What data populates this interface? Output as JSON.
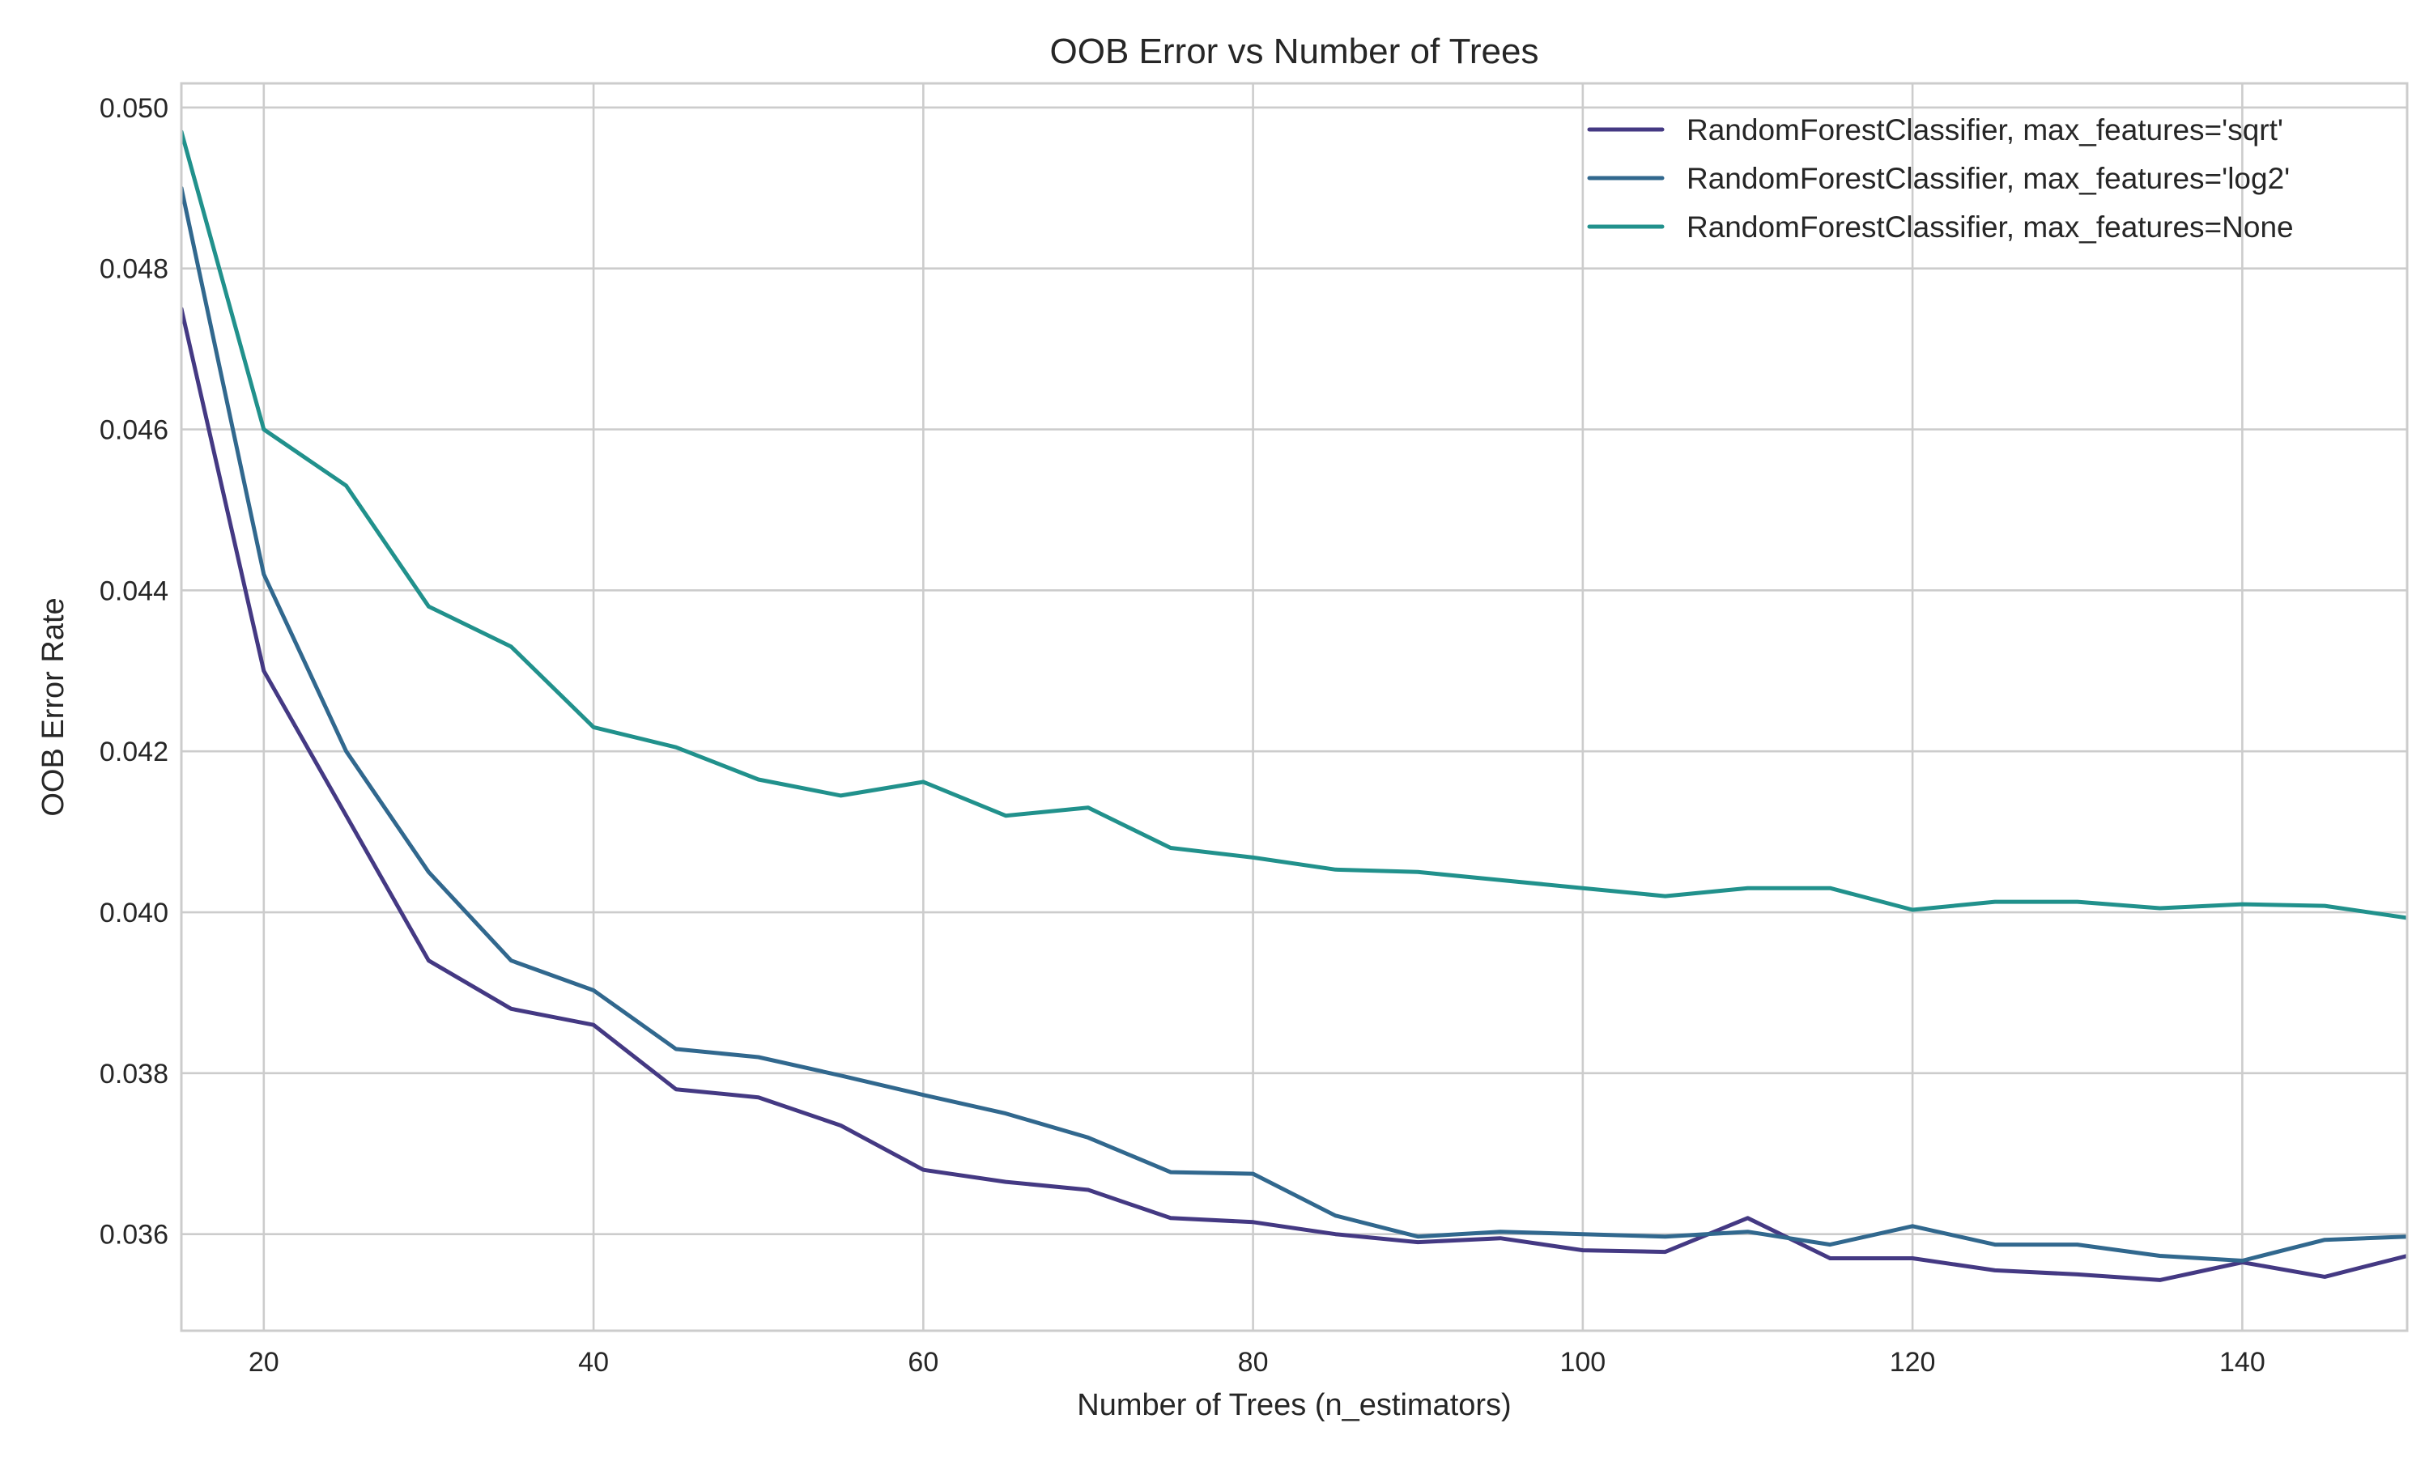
{
  "chart_data": {
    "type": "line",
    "title": "OOB Error vs Number of Trees",
    "xlabel": "Number of Trees (n_estimators)",
    "ylabel": "OOB Error Rate",
    "xlim": [
      15,
      150
    ],
    "ylim": [
      0.0348,
      0.0503
    ],
    "xticks": [
      20,
      40,
      60,
      80,
      100,
      120,
      140
    ],
    "yticks": [
      0.036,
      0.038,
      0.04,
      0.042,
      0.044,
      0.046,
      0.048,
      0.05
    ],
    "ytick_labels": [
      "0.036",
      "0.038",
      "0.040",
      "0.042",
      "0.044",
      "0.046",
      "0.048",
      "0.050"
    ],
    "grid": true,
    "legend_position": "top-right",
    "x": [
      15,
      20,
      25,
      30,
      35,
      40,
      45,
      50,
      55,
      60,
      65,
      70,
      75,
      80,
      85,
      90,
      95,
      100,
      105,
      110,
      115,
      120,
      125,
      130,
      135,
      140,
      145,
      150
    ],
    "series": [
      {
        "name": "RandomForestClassifier, max_features='sqrt'",
        "color": "#443983",
        "values": [
          0.0475,
          0.043,
          0.0412,
          0.0394,
          0.0388,
          0.0386,
          0.0378,
          0.0377,
          0.03735,
          0.0368,
          0.03665,
          0.03655,
          0.0362,
          0.03615,
          0.036,
          0.0359,
          0.03595,
          0.0358,
          0.03578,
          0.0362,
          0.0357,
          0.0357,
          0.03555,
          0.0355,
          0.03543,
          0.03565,
          0.03547,
          0.03573
        ]
      },
      {
        "name": "RandomForestClassifier, max_features='log2'",
        "color": "#31688e",
        "values": [
          0.049,
          0.0442,
          0.042,
          0.0405,
          0.0394,
          0.03903,
          0.0383,
          0.0382,
          0.03797,
          0.03773,
          0.0375,
          0.0372,
          0.03677,
          0.03675,
          0.03623,
          0.03597,
          0.03603,
          0.036,
          0.03597,
          0.03603,
          0.03587,
          0.0361,
          0.03587,
          0.03587,
          0.03573,
          0.03567,
          0.03593,
          0.03597
        ]
      },
      {
        "name": "RandomForestClassifier, max_features=None",
        "color": "#21918c",
        "values": [
          0.0497,
          0.046,
          0.0453,
          0.0438,
          0.0433,
          0.0423,
          0.04205,
          0.04165,
          0.04145,
          0.04162,
          0.0412,
          0.0413,
          0.0408,
          0.04068,
          0.04053,
          0.0405,
          0.0404,
          0.0403,
          0.0402,
          0.0403,
          0.0403,
          0.04003,
          0.04013,
          0.04013,
          0.04005,
          0.0401,
          0.04008,
          0.03993
        ]
      }
    ]
  }
}
